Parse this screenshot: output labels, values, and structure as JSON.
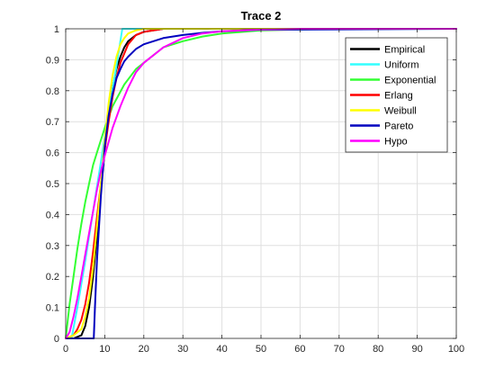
{
  "chart_data": {
    "type": "line",
    "title": "Trace 2",
    "xlabel": "",
    "ylabel": "",
    "xlim": [
      0,
      100
    ],
    "ylim": [
      0,
      1
    ],
    "xticks": [
      0,
      10,
      20,
      30,
      40,
      50,
      60,
      70,
      80,
      90,
      100
    ],
    "yticks": [
      0,
      0.1,
      0.2,
      0.3,
      0.4,
      0.5,
      0.6,
      0.7,
      0.8,
      0.9,
      1
    ],
    "grid": true,
    "legend_position": "top-right",
    "series": [
      {
        "name": "Empirical",
        "color": "#000000",
        "x": [
          0,
          2,
          4,
          5,
          6,
          7,
          8,
          9,
          10,
          11,
          12,
          13,
          14,
          15,
          16,
          18,
          20,
          25,
          30,
          40,
          50,
          100
        ],
        "y": [
          0,
          0,
          0.01,
          0.04,
          0.1,
          0.2,
          0.33,
          0.48,
          0.61,
          0.72,
          0.81,
          0.87,
          0.91,
          0.94,
          0.96,
          0.98,
          0.99,
          1,
          1,
          1,
          1,
          1
        ]
      },
      {
        "name": "Uniform",
        "color": "#33ffff",
        "x": [
          0,
          1.5,
          3,
          5,
          7,
          9,
          11,
          13,
          14.5,
          15.5,
          100
        ],
        "y": [
          0,
          0,
          0.1,
          0.25,
          0.41,
          0.57,
          0.73,
          0.88,
          1,
          1,
          1
        ]
      },
      {
        "name": "Exponential",
        "color": "#33ff33",
        "x": [
          0,
          1,
          2,
          3,
          4,
          5,
          6,
          7,
          8,
          10,
          12,
          15,
          18,
          20,
          25,
          30,
          35,
          40,
          50,
          60,
          70,
          100
        ],
        "y": [
          0,
          0.11,
          0.2,
          0.29,
          0.37,
          0.44,
          0.5,
          0.56,
          0.6,
          0.68,
          0.75,
          0.82,
          0.87,
          0.89,
          0.94,
          0.96,
          0.975,
          0.985,
          0.995,
          0.998,
          1,
          1
        ]
      },
      {
        "name": "Erlang",
        "color": "#ff0000",
        "x": [
          0,
          2,
          3,
          4,
          5,
          6,
          7,
          8,
          9,
          10,
          11,
          12,
          13,
          14,
          15,
          16,
          18,
          20,
          25,
          30,
          100
        ],
        "y": [
          0,
          0.01,
          0.03,
          0.06,
          0.11,
          0.18,
          0.28,
          0.39,
          0.5,
          0.61,
          0.7,
          0.78,
          0.84,
          0.89,
          0.92,
          0.95,
          0.98,
          0.99,
          1,
          1,
          1
        ]
      },
      {
        "name": "Weibull",
        "color": "#ffff00",
        "x": [
          0,
          2,
          4,
          5,
          6,
          7,
          8,
          9,
          10,
          11,
          12,
          13,
          14,
          15,
          16,
          18,
          20,
          25,
          100
        ],
        "y": [
          0,
          0.01,
          0.03,
          0.07,
          0.13,
          0.23,
          0.36,
          0.5,
          0.64,
          0.76,
          0.85,
          0.91,
          0.95,
          0.97,
          0.985,
          0.995,
          1,
          1,
          1
        ]
      },
      {
        "name": "Pareto",
        "color": "#0000bf",
        "x": [
          0,
          7.2,
          7.5,
          8,
          9,
          10,
          11,
          12,
          13,
          14,
          15,
          16,
          18,
          20,
          25,
          30,
          35,
          40,
          50,
          100
        ],
        "y": [
          0,
          0,
          0.1,
          0.25,
          0.46,
          0.62,
          0.72,
          0.79,
          0.84,
          0.87,
          0.895,
          0.91,
          0.935,
          0.95,
          0.97,
          0.98,
          0.987,
          0.992,
          0.997,
          1
        ]
      },
      {
        "name": "Hypo",
        "color": "#ff00ff",
        "x": [
          0,
          1,
          2,
          3,
          4,
          5,
          6,
          7,
          8,
          9,
          10,
          12,
          14,
          16,
          18,
          20,
          25,
          30,
          35,
          40,
          50,
          60,
          100
        ],
        "y": [
          0,
          0.02,
          0.07,
          0.13,
          0.2,
          0.27,
          0.34,
          0.41,
          0.48,
          0.54,
          0.59,
          0.68,
          0.75,
          0.81,
          0.86,
          0.89,
          0.94,
          0.97,
          0.985,
          0.992,
          0.998,
          1,
          1
        ]
      }
    ]
  }
}
